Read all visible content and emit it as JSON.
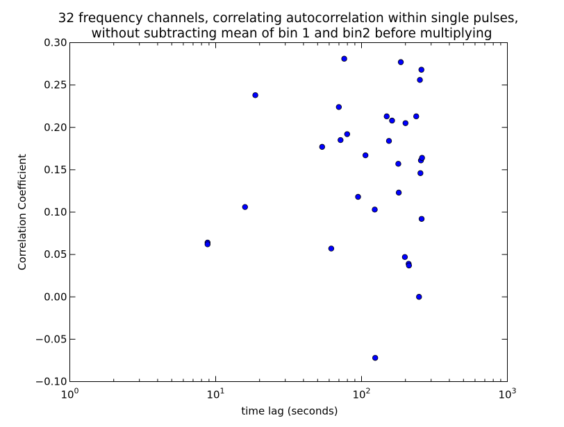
{
  "chart_data": {
    "type": "scatter",
    "title_lines": [
      "32 frequency channels, correlating autocorrelation within single pulses,",
      "without subtracting mean of bin 1 and bin2 before multiplying"
    ],
    "xlabel": "time lag (seconds)",
    "ylabel": "Correlation Coefficient",
    "x_scale": "log",
    "xlim": [
      1,
      1000
    ],
    "ylim": [
      -0.1,
      0.3
    ],
    "x_ticks": [
      {
        "value": 1,
        "base": "10",
        "exp": "0"
      },
      {
        "value": 10,
        "base": "10",
        "exp": "1"
      },
      {
        "value": 100,
        "base": "10",
        "exp": "2"
      },
      {
        "value": 1000,
        "base": "10",
        "exp": "3"
      }
    ],
    "y_ticks": [
      {
        "value": -0.1,
        "label": "−0.10"
      },
      {
        "value": -0.05,
        "label": "−0.05"
      },
      {
        "value": 0.0,
        "label": "0.00"
      },
      {
        "value": 0.05,
        "label": "0.05"
      },
      {
        "value": 0.1,
        "label": "0.10"
      },
      {
        "value": 0.15,
        "label": "0.15"
      },
      {
        "value": 0.2,
        "label": "0.20"
      },
      {
        "value": 0.25,
        "label": "0.25"
      },
      {
        "value": 0.3,
        "label": "0.30"
      }
    ],
    "grid": false,
    "marker_color": "#0000ff",
    "marker_edge_color": "#000000",
    "series": [
      {
        "points": [
          {
            "x": 8.8,
            "y": 0.064
          },
          {
            "x": 8.8,
            "y": 0.062
          },
          {
            "x": 15.9,
            "y": 0.106
          },
          {
            "x": 18.7,
            "y": 0.238
          },
          {
            "x": 53.7,
            "y": 0.177
          },
          {
            "x": 62.0,
            "y": 0.057
          },
          {
            "x": 69.9,
            "y": 0.224
          },
          {
            "x": 71.8,
            "y": 0.185
          },
          {
            "x": 76.1,
            "y": 0.281
          },
          {
            "x": 79.7,
            "y": 0.192
          },
          {
            "x": 94.7,
            "y": 0.118
          },
          {
            "x": 106.4,
            "y": 0.167
          },
          {
            "x": 123.2,
            "y": 0.103
          },
          {
            "x": 124.1,
            "y": -0.072
          },
          {
            "x": 148.8,
            "y": 0.213
          },
          {
            "x": 154.2,
            "y": 0.184
          },
          {
            "x": 161.9,
            "y": 0.208
          },
          {
            "x": 178.7,
            "y": 0.157
          },
          {
            "x": 180.0,
            "y": 0.123
          },
          {
            "x": 185.9,
            "y": 0.277
          },
          {
            "x": 198.2,
            "y": 0.047
          },
          {
            "x": 200.2,
            "y": 0.205
          },
          {
            "x": 210.4,
            "y": 0.039
          },
          {
            "x": 211.5,
            "y": 0.037
          },
          {
            "x": 237.1,
            "y": 0.213
          },
          {
            "x": 247.8,
            "y": 0.0
          },
          {
            "x": 251.3,
            "y": 0.256
          },
          {
            "x": 253.4,
            "y": 0.146
          },
          {
            "x": 255.4,
            "y": 0.161
          },
          {
            "x": 257.4,
            "y": 0.268
          },
          {
            "x": 258.2,
            "y": 0.092
          },
          {
            "x": 260.0,
            "y": 0.164
          }
        ]
      }
    ]
  }
}
